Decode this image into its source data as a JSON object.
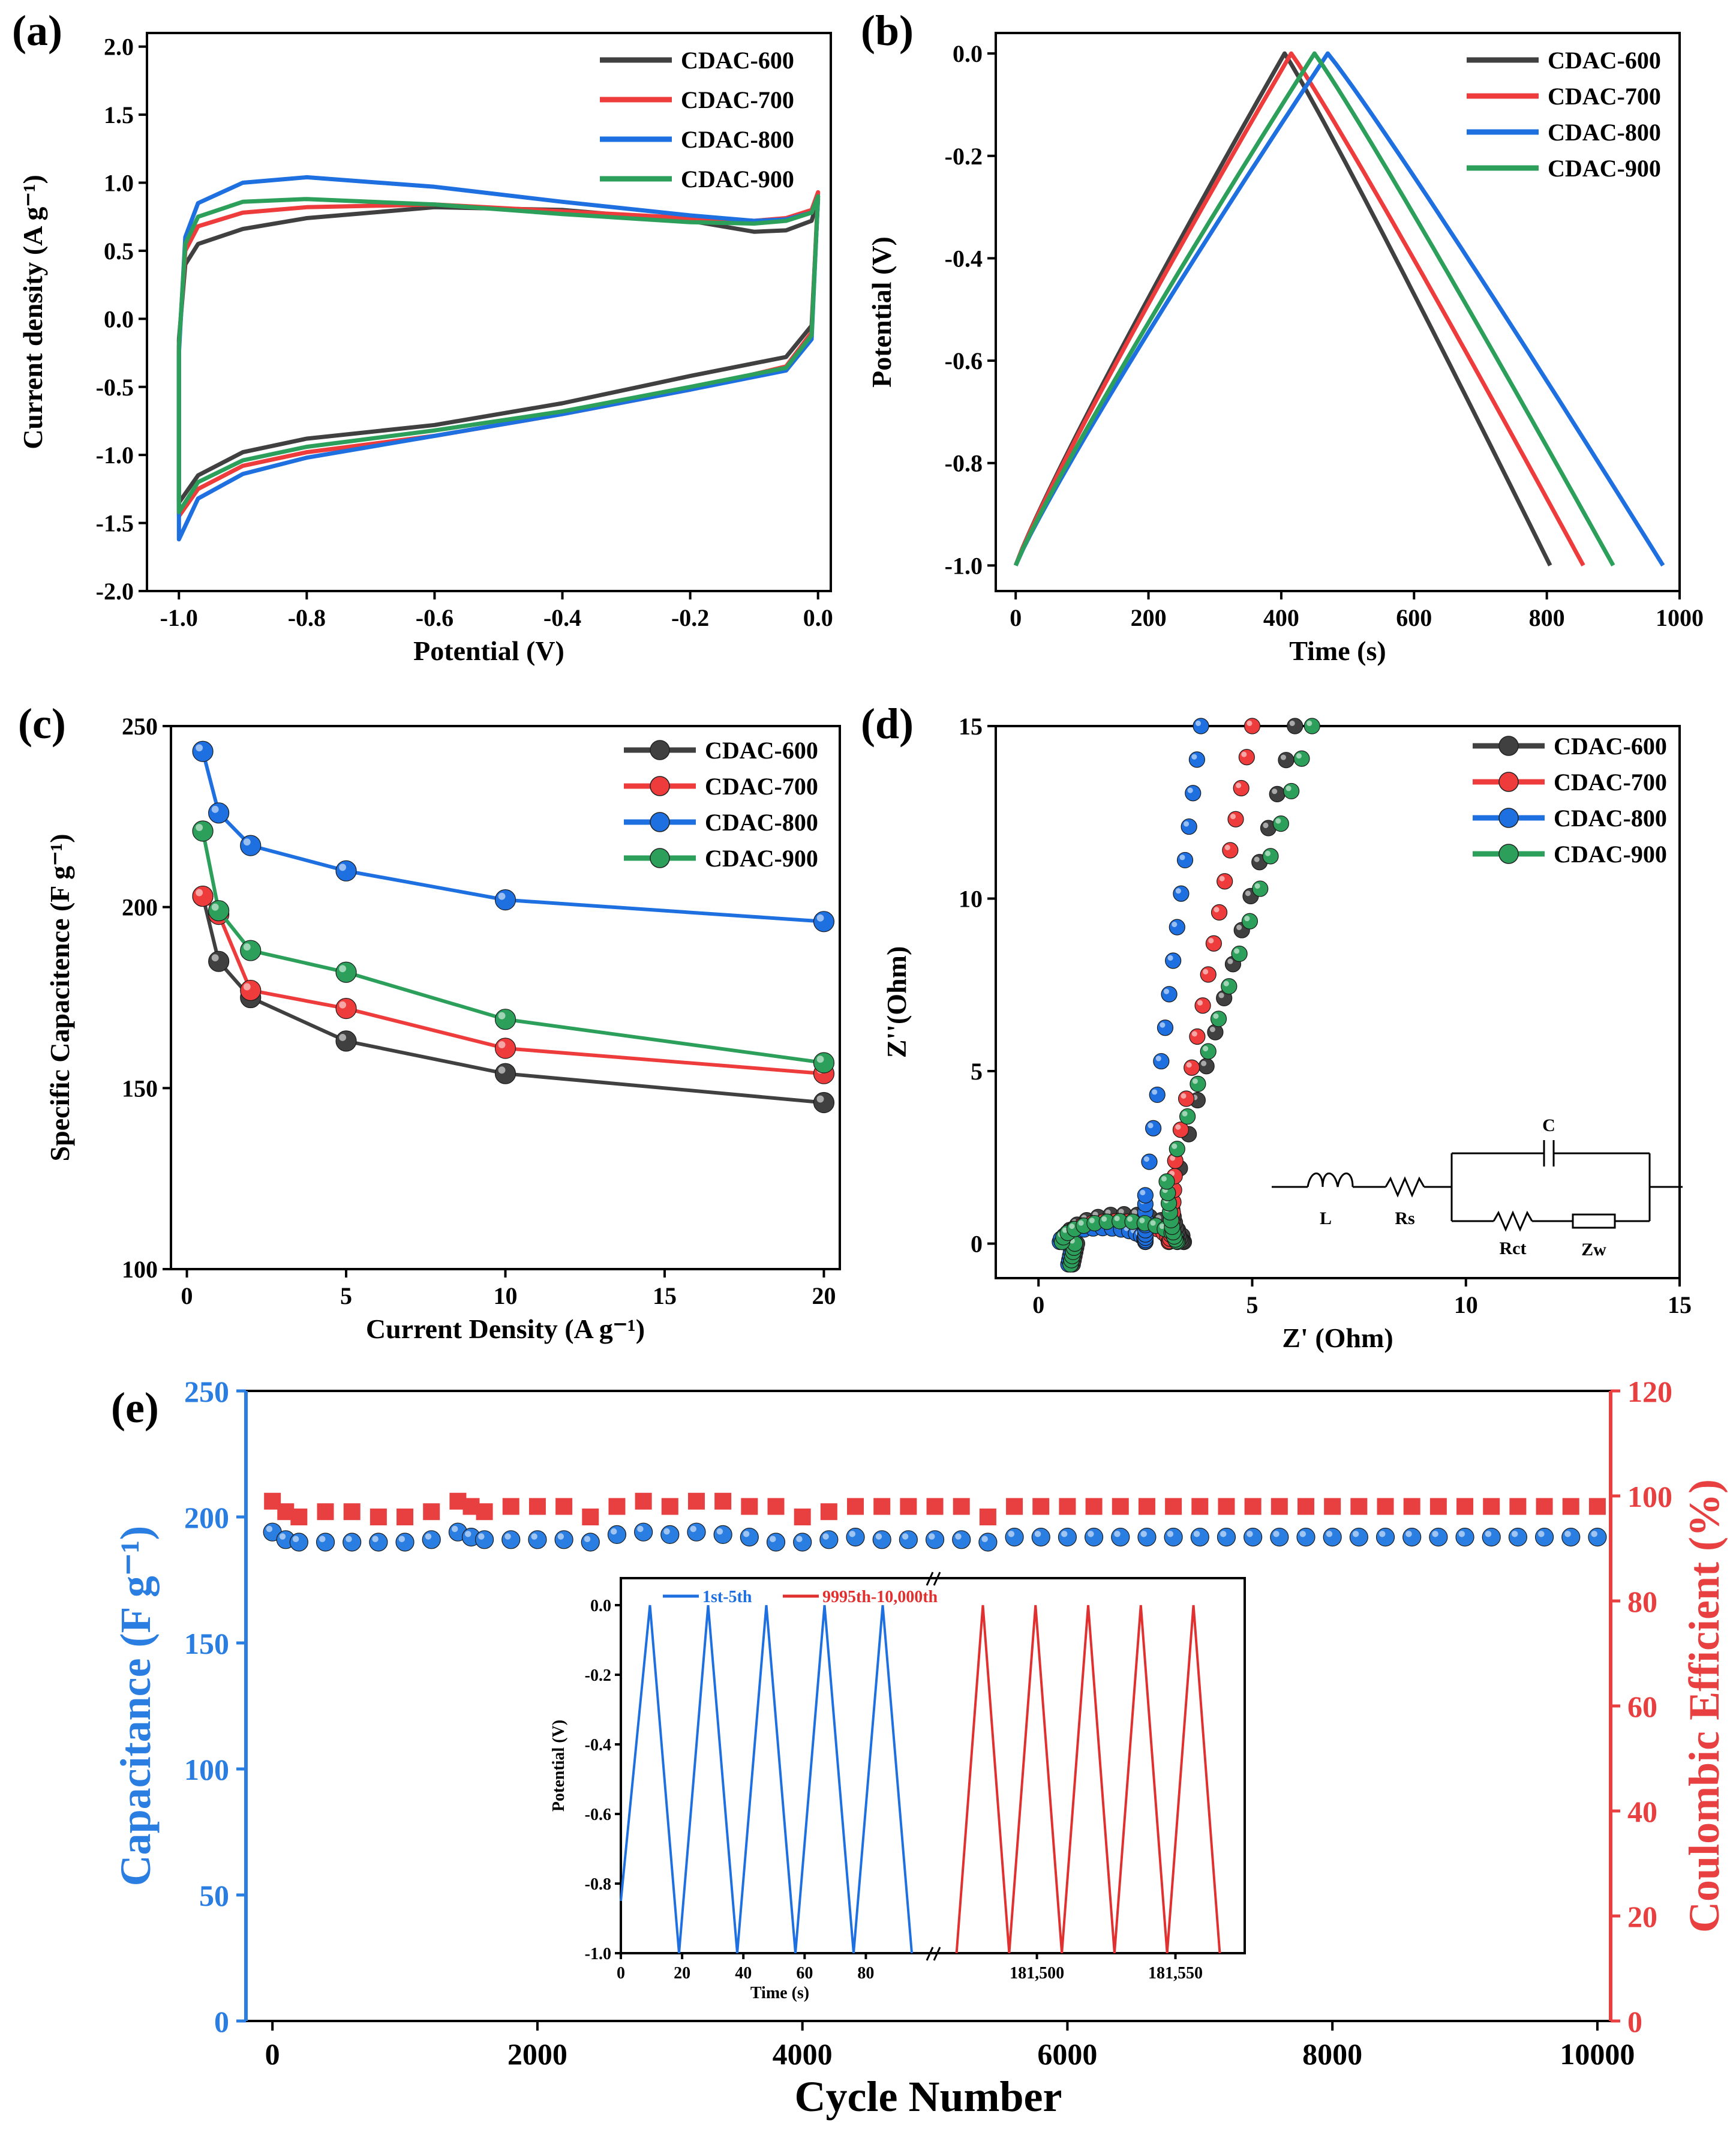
{
  "colors": {
    "CDAC-600": "#404040",
    "CDAC-700": "#ee3b3b",
    "CDAC-800": "#1e6fe0",
    "CDAC-900": "#2ca05a",
    "capacitance": "#2a7de1",
    "coulombic": "#e84040",
    "inset_early": "#1e6fe0",
    "inset_late": "#e03030"
  },
  "chart_data": [
    {
      "id": "a",
      "panel_label": "(a)",
      "type": "line",
      "title": "",
      "xlabel": "Potential (V)",
      "ylabel": "Current density (A g⁻¹)",
      "xlim": [
        -1.05,
        0.02
      ],
      "ylim": [
        -2.0,
        2.1
      ],
      "xticks": [
        -1.0,
        -0.8,
        -0.6,
        -0.4,
        -0.2,
        0.0
      ],
      "xtick_labels": [
        "-1.0",
        "-0.8",
        "-0.6",
        "-0.4",
        "-0.2",
        "0.0"
      ],
      "yticks": [
        -2.0,
        -1.5,
        -1.0,
        -0.5,
        0.0,
        0.5,
        1.0,
        1.5,
        2.0
      ],
      "ytick_labels": [
        "-2.0",
        "-1.5",
        "-1.0",
        "-0.5",
        "0.0",
        "0.5",
        "1.0",
        "1.5",
        "2.0"
      ],
      "legend": "top-right",
      "series": [
        {
          "name": "CDAC-600",
          "forward": [
            [
              -1.0,
              -0.15
            ],
            [
              -0.99,
              0.4
            ],
            [
              -0.97,
              0.55
            ],
            [
              -0.9,
              0.66
            ],
            [
              -0.8,
              0.74
            ],
            [
              -0.6,
              0.82
            ],
            [
              -0.4,
              0.8
            ],
            [
              -0.2,
              0.72
            ],
            [
              -0.1,
              0.64
            ],
            [
              -0.05,
              0.65
            ],
            [
              -0.01,
              0.72
            ],
            [
              0.0,
              0.88
            ]
          ],
          "reverse": [
            [
              0.0,
              0.88
            ],
            [
              -0.01,
              -0.05
            ],
            [
              -0.05,
              -0.28
            ],
            [
              -0.2,
              -0.42
            ],
            [
              -0.4,
              -0.62
            ],
            [
              -0.6,
              -0.78
            ],
            [
              -0.8,
              -0.88
            ],
            [
              -0.9,
              -0.98
            ],
            [
              -0.97,
              -1.15
            ],
            [
              -1.0,
              -1.35
            ],
            [
              -1.0,
              -0.15
            ]
          ]
        },
        {
          "name": "CDAC-700",
          "forward": [
            [
              -1.0,
              -0.2
            ],
            [
              -0.99,
              0.5
            ],
            [
              -0.97,
              0.68
            ],
            [
              -0.9,
              0.78
            ],
            [
              -0.8,
              0.82
            ],
            [
              -0.6,
              0.84
            ],
            [
              -0.4,
              0.79
            ],
            [
              -0.2,
              0.74
            ],
            [
              -0.1,
              0.72
            ],
            [
              -0.05,
              0.74
            ],
            [
              -0.01,
              0.8
            ],
            [
              0.0,
              0.93
            ]
          ],
          "reverse": [
            [
              0.0,
              0.93
            ],
            [
              -0.01,
              -0.1
            ],
            [
              -0.05,
              -0.35
            ],
            [
              -0.2,
              -0.52
            ],
            [
              -0.4,
              -0.7
            ],
            [
              -0.6,
              -0.86
            ],
            [
              -0.8,
              -0.98
            ],
            [
              -0.9,
              -1.08
            ],
            [
              -0.97,
              -1.25
            ],
            [
              -1.0,
              -1.45
            ],
            [
              -1.0,
              -0.2
            ]
          ]
        },
        {
          "name": "CDAC-800",
          "forward": [
            [
              -1.0,
              -0.25
            ],
            [
              -0.99,
              0.6
            ],
            [
              -0.97,
              0.85
            ],
            [
              -0.9,
              1.0
            ],
            [
              -0.8,
              1.04
            ],
            [
              -0.6,
              0.97
            ],
            [
              -0.4,
              0.86
            ],
            [
              -0.2,
              0.76
            ],
            [
              -0.1,
              0.72
            ],
            [
              -0.05,
              0.73
            ],
            [
              -0.01,
              0.78
            ],
            [
              0.0,
              0.9
            ]
          ],
          "reverse": [
            [
              0.0,
              0.9
            ],
            [
              -0.01,
              -0.15
            ],
            [
              -0.05,
              -0.38
            ],
            [
              -0.2,
              -0.52
            ],
            [
              -0.4,
              -0.7
            ],
            [
              -0.6,
              -0.86
            ],
            [
              -0.8,
              -1.02
            ],
            [
              -0.9,
              -1.14
            ],
            [
              -0.97,
              -1.32
            ],
            [
              -1.0,
              -1.62
            ],
            [
              -1.0,
              -0.25
            ]
          ]
        },
        {
          "name": "CDAC-900",
          "forward": [
            [
              -1.0,
              -0.2
            ],
            [
              -0.99,
              0.55
            ],
            [
              -0.97,
              0.75
            ],
            [
              -0.9,
              0.86
            ],
            [
              -0.8,
              0.88
            ],
            [
              -0.6,
              0.84
            ],
            [
              -0.4,
              0.77
            ],
            [
              -0.2,
              0.71
            ],
            [
              -0.1,
              0.7
            ],
            [
              -0.05,
              0.72
            ],
            [
              -0.01,
              0.78
            ],
            [
              0.0,
              0.9
            ]
          ],
          "reverse": [
            [
              0.0,
              0.9
            ],
            [
              -0.01,
              -0.12
            ],
            [
              -0.05,
              -0.36
            ],
            [
              -0.2,
              -0.5
            ],
            [
              -0.4,
              -0.68
            ],
            [
              -0.6,
              -0.82
            ],
            [
              -0.8,
              -0.94
            ],
            [
              -0.9,
              -1.04
            ],
            [
              -0.97,
              -1.2
            ],
            [
              -1.0,
              -1.42
            ],
            [
              -1.0,
              -0.2
            ]
          ]
        }
      ]
    },
    {
      "id": "b",
      "panel_label": "(b)",
      "type": "line",
      "title": "",
      "xlabel": "Time (s)",
      "ylabel": "Potential (V)",
      "xlim": [
        -30,
        1000
      ],
      "ylim": [
        -1.05,
        0.04
      ],
      "xticks": [
        0,
        200,
        400,
        600,
        800,
        1000
      ],
      "xtick_labels": [
        "0",
        "200",
        "400",
        "600",
        "800",
        "1000"
      ],
      "yticks": [
        -1.0,
        -0.8,
        -0.6,
        -0.4,
        -0.2,
        0.0
      ],
      "ytick_labels": [
        "-1.0",
        "-0.8",
        "-0.6",
        "-0.4",
        "-0.2",
        "0.0"
      ],
      "legend": "top-right",
      "series": [
        {
          "name": "CDAC-600",
          "peak_time": 405,
          "end_time": 805
        },
        {
          "name": "CDAC-700",
          "peak_time": 415,
          "end_time": 855
        },
        {
          "name": "CDAC-800",
          "peak_time": 470,
          "end_time": 975
        },
        {
          "name": "CDAC-900",
          "peak_time": 450,
          "end_time": 900
        }
      ],
      "axis_max_label": "1000"
    },
    {
      "id": "c",
      "panel_label": "(c)",
      "type": "line",
      "title": "",
      "xlabel": "Current Density (A g⁻¹)",
      "ylabel": "Specific Capacitence (F g⁻¹)",
      "xlim": [
        -0.5,
        20.5
      ],
      "ylim": [
        100,
        250
      ],
      "xticks": [
        0,
        5,
        10,
        15,
        20
      ],
      "xtick_labels": [
        "0",
        "5",
        "10",
        "15",
        "20"
      ],
      "yticks": [
        100,
        150,
        200,
        250
      ],
      "ytick_labels": [
        "100",
        "150",
        "200",
        "250"
      ],
      "legend": "top-right",
      "x": [
        0.5,
        1,
        2,
        5,
        10,
        20
      ],
      "series": [
        {
          "name": "CDAC-600",
          "values": [
            203,
            185,
            175,
            163,
            154,
            146
          ]
        },
        {
          "name": "CDAC-700",
          "values": [
            203,
            198,
            177,
            172,
            161,
            154
          ]
        },
        {
          "name": "CDAC-800",
          "values": [
            243,
            226,
            217,
            210,
            202,
            196
          ]
        },
        {
          "name": "CDAC-900",
          "values": [
            221,
            199,
            188,
            182,
            169,
            157
          ]
        }
      ]
    },
    {
      "id": "d",
      "panel_label": "(d)",
      "type": "scatter",
      "title": "",
      "xlabel": "Z' (Ohm)",
      "ylabel": "Z''(Ohm)",
      "xlim": [
        -1,
        15
      ],
      "ylim": [
        -1,
        15
      ],
      "xticks": [
        0,
        5,
        10,
        15
      ],
      "xtick_labels": [
        "0",
        "5",
        "10",
        "15"
      ],
      "yticks": [
        0,
        5,
        10,
        15
      ],
      "ytick_labels": [
        "0",
        "5",
        "10",
        "15"
      ],
      "legend": "top-right",
      "series": [
        {
          "name": "CDAC-600",
          "start": [
            0.8,
            -0.6
          ],
          "knee": [
            3.1,
            1.2
          ],
          "end": [
            6.0,
            15.0
          ],
          "arc_center": [
            2.0,
            0.8
          ]
        },
        {
          "name": "CDAC-700",
          "start": [
            0.75,
            -0.6
          ],
          "knee": [
            3.2,
            2.4
          ],
          "end": [
            5.0,
            15.0
          ],
          "arc_center": [
            1.8,
            0.6
          ]
        },
        {
          "name": "CDAC-800",
          "start": [
            0.7,
            -0.6
          ],
          "knee": [
            2.5,
            1.4
          ],
          "end": [
            3.8,
            15.0
          ],
          "arc_center": [
            1.5,
            0.4
          ]
        },
        {
          "name": "CDAC-900",
          "start": [
            0.75,
            -0.6
          ],
          "knee": [
            3.0,
            1.8
          ],
          "end": [
            6.4,
            15.0
          ],
          "arc_center": [
            1.9,
            0.6
          ]
        }
      ],
      "circuit": {
        "labels": [
          "L",
          "Rs",
          "C",
          "Rct",
          "Zw"
        ]
      }
    },
    {
      "id": "e",
      "panel_label": "(e)",
      "type": "scatter",
      "title": "",
      "xlabel": "Cycle Number",
      "ylabel": "Capacitance (F g⁻¹)",
      "y2label": "Coulombic Efficient (%)",
      "xlim": [
        -200,
        10100
      ],
      "ylim": [
        0,
        250
      ],
      "y2lim": [
        0,
        120
      ],
      "xticks": [
        0,
        2000,
        4000,
        6000,
        8000,
        10000
      ],
      "xtick_labels": [
        "0",
        "2000",
        "4000",
        "6000",
        "8000",
        "10000"
      ],
      "yticks": [
        0,
        50,
        100,
        150,
        200,
        250
      ],
      "ytick_labels": [
        "0",
        "50",
        "100",
        "150",
        "200",
        "250"
      ],
      "y2ticks": [
        0,
        20,
        40,
        60,
        80,
        100,
        120
      ],
      "y2tick_labels": [
        "0",
        "20",
        "40",
        "60",
        "80",
        "100",
        "120"
      ],
      "x": [
        0,
        100,
        200,
        400,
        600,
        800,
        1000,
        1200,
        1400,
        1500,
        1600,
        1800,
        2000,
        2200,
        2400,
        2600,
        2800,
        3000,
        3200,
        3400,
        3600,
        3800,
        4000,
        4200,
        4400,
        4600,
        4800,
        5000,
        5200,
        5400,
        5600,
        5800,
        6000,
        6200,
        6400,
        6600,
        6800,
        7000,
        7200,
        7400,
        7600,
        7800,
        8000,
        8200,
        8400,
        8600,
        8800,
        9000,
        9200,
        9400,
        9600,
        9800,
        10000
      ],
      "capacitance": [
        194,
        191,
        190,
        190,
        190,
        190,
        190,
        191,
        194,
        192,
        191,
        191,
        191,
        191,
        190,
        193,
        194,
        193,
        194,
        193,
        192,
        190,
        190,
        191,
        192,
        191,
        191,
        191,
        191,
        190,
        192,
        192,
        192,
        192,
        192,
        192,
        192,
        192,
        192,
        192,
        192,
        192,
        192,
        192,
        192,
        192,
        192,
        192,
        192,
        192,
        192,
        192,
        192
      ],
      "coulombic": [
        99,
        97,
        96,
        97,
        97,
        96,
        96,
        97,
        99,
        98,
        97,
        98,
        98,
        98,
        96,
        98,
        99,
        98,
        99,
        99,
        98,
        98,
        96,
        97,
        98,
        98,
        98,
        98,
        98,
        96,
        98,
        98,
        98,
        98,
        98,
        98,
        98,
        98,
        98,
        98,
        98,
        98,
        98,
        98,
        98,
        98,
        98,
        98,
        98,
        98,
        98,
        98,
        98
      ],
      "inset": {
        "xlabel": "Time (s)",
        "ylabel": "Potential (V)",
        "legend_early": "1st-5th",
        "legend_late": "9995th-10,000th",
        "xtick_labels": [
          "0",
          "20",
          "40",
          "60",
          "80",
          "181,500",
          "181,550"
        ],
        "ytick_labels": [
          "-1.0",
          "-0.8",
          "-0.6",
          "-0.4",
          "-0.2",
          "0.0"
        ],
        "early_cycles": 5,
        "late_cycles": 5
      }
    }
  ]
}
